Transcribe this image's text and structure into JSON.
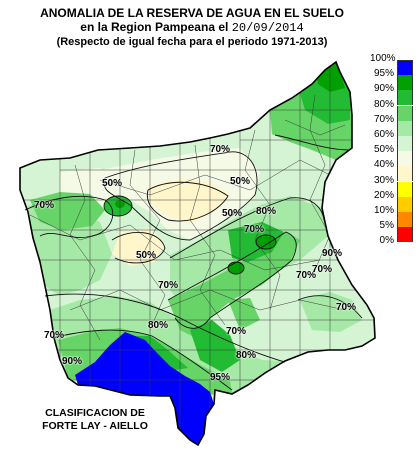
{
  "title": {
    "line1": "ANOMALIA DE LA RESERVA DE AGUA EN EL SUELO",
    "line2_prefix": "en la Region Pampeana el",
    "date": "20/09/2014",
    "line3": "(Respecto de igual fecha para el periodo 1971-2013)"
  },
  "credit": {
    "line1": "CLASIFICACION DE",
    "line2": "FORTE LAY - AIELLO"
  },
  "legend": [
    {
      "label": "100%",
      "color": "#0000ff"
    },
    {
      "label": "95%",
      "color": "#00a000"
    },
    {
      "label": "90%",
      "color": "#22bb33"
    },
    {
      "label": "80%",
      "color": "#66d466"
    },
    {
      "label": "70%",
      "color": "#a6e8a6"
    },
    {
      "label": "60%",
      "color": "#d4f4d4"
    },
    {
      "label": "50%",
      "color": "#f4fae6"
    },
    {
      "label": "40%",
      "color": "#fff6cc"
    },
    {
      "label": "30%",
      "color": "#ffff00"
    },
    {
      "label": "20%",
      "color": "#ffcc00"
    },
    {
      "label": "10%",
      "color": "#ff8800"
    },
    {
      "label": "5%",
      "color": "#ff0000"
    },
    {
      "label": "0%",
      "color": "#ffffff"
    }
  ],
  "contour_labels": [
    "70%",
    "50%",
    "70%",
    "50%",
    "50%",
    "70%",
    "50%",
    "70%",
    "70%",
    "70%",
    "80%",
    "70%",
    "90%",
    "80%",
    "70%",
    "95%",
    "90%",
    "70%",
    "80%"
  ]
}
